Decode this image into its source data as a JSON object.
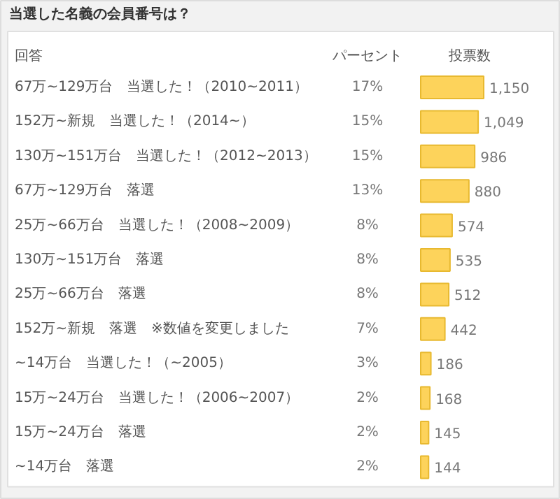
{
  "chart_data": {
    "type": "bar",
    "orientation": "horizontal",
    "title": "当選した名義の会員番号は？",
    "categories": [
      "67万~129万台　当選した！（2010~2011）",
      "152万~新規　当選した！（2014~）",
      "130万~151万台　当選した！（2012~2013）",
      "67万~129万台　落選",
      "25万~66万台　当選した！（2008~2009）",
      "130万~151万台　落選",
      "25万~66万台　落選",
      "152万~新規　落選　※数値を変更しました",
      "~14万台　当選した！（~2005）",
      "15万~24万台　当選した！（2006~2007）",
      "15万~24万台　落選",
      "~14万台　落選"
    ],
    "values": [
      1150,
      1049,
      986,
      880,
      574,
      535,
      512,
      442,
      186,
      168,
      145,
      144
    ],
    "value_labels": [
      "1,150",
      "1,049",
      "986",
      "880",
      "574",
      "535",
      "512",
      "442",
      "186",
      "168",
      "145",
      "144"
    ],
    "color": "#fdd35b",
    "annotations": [
      "回答",
      "投票数",
      "パーセント",
      "17%",
      "15%",
      "15%",
      "13%",
      "8%",
      "8%",
      "8%",
      "7%",
      "3%",
      "2%",
      "2%",
      "2%"
    ]
  }
}
